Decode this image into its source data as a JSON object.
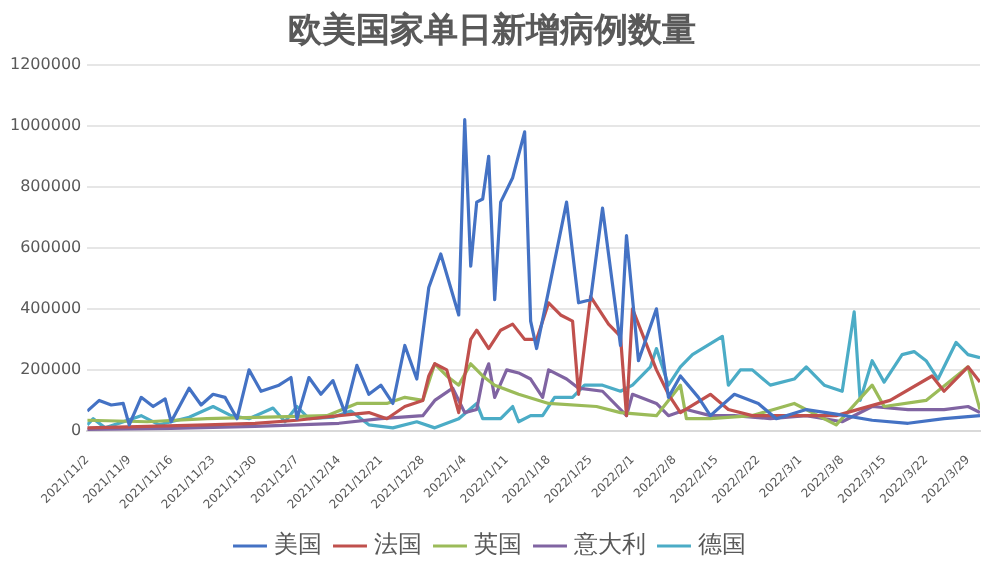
{
  "chart_data": {
    "type": "line",
    "title": "欧美国家单日新增病例数量",
    "xlim": [
      "2021-11-02",
      "2022-03-31"
    ],
    "xticks": [
      {
        "value": "2021-11-02",
        "label": "2021/11/2"
      },
      {
        "value": "2021-11-09",
        "label": "2021/11/9"
      },
      {
        "value": "2021-11-16",
        "label": "2021/11/16"
      },
      {
        "value": "2021-11-23",
        "label": "2021/11/23"
      },
      {
        "value": "2021-11-30",
        "label": "2021/11/30"
      },
      {
        "value": "2021-12-07",
        "label": "2021/12/7"
      },
      {
        "value": "2021-12-14",
        "label": "2021/12/14"
      },
      {
        "value": "2021-12-21",
        "label": "2021/12/21"
      },
      {
        "value": "2021-12-28",
        "label": "2021/12/28"
      },
      {
        "value": "2022-01-04",
        "label": "2022/1/4"
      },
      {
        "value": "2022-01-11",
        "label": "2022/1/11"
      },
      {
        "value": "2022-01-18",
        "label": "2022/1/18"
      },
      {
        "value": "2022-01-25",
        "label": "2022/1/25"
      },
      {
        "value": "2022-02-01",
        "label": "2022/2/1"
      },
      {
        "value": "2022-02-08",
        "label": "2022/2/8"
      },
      {
        "value": "2022-02-15",
        "label": "2022/2/15"
      },
      {
        "value": "2022-02-22",
        "label": "2022/2/22"
      },
      {
        "value": "2022-03-01",
        "label": "2022/3/1"
      },
      {
        "value": "2022-03-08",
        "label": "2022/3/8"
      },
      {
        "value": "2022-03-15",
        "label": "2022/3/15"
      },
      {
        "value": "2022-03-22",
        "label": "2022/3/22"
      },
      {
        "value": "2022-03-29",
        "label": "2022/3/29"
      }
    ],
    "ylim": [
      0,
      1200000
    ],
    "yticks": [
      0,
      200000,
      400000,
      600000,
      800000,
      1000000,
      1200000
    ],
    "grid": "y",
    "legend": "bottom",
    "marker": "none",
    "line_style": "solid",
    "series": [
      {
        "name": "美国",
        "color": "#4472c4",
        "x": [
          "2021-11-02",
          "2021-11-04",
          "2021-11-06",
          "2021-11-08",
          "2021-11-09",
          "2021-11-11",
          "2021-11-13",
          "2021-11-15",
          "2021-11-16",
          "2021-11-19",
          "2021-11-21",
          "2021-11-23",
          "2021-11-25",
          "2021-11-27",
          "2021-11-29",
          "2021-12-01",
          "2021-12-04",
          "2021-12-06",
          "2021-12-07",
          "2021-12-09",
          "2021-12-11",
          "2021-12-13",
          "2021-12-15",
          "2021-12-17",
          "2021-12-19",
          "2021-12-21",
          "2021-12-23",
          "2021-12-25",
          "2021-12-27",
          "2021-12-29",
          "2021-12-31",
          "2022-01-03",
          "2022-01-04",
          "2022-01-05",
          "2022-01-06",
          "2022-01-07",
          "2022-01-08",
          "2022-01-09",
          "2022-01-10",
          "2022-01-12",
          "2022-01-14",
          "2022-01-15",
          "2022-01-16",
          "2022-01-18",
          "2022-01-21",
          "2022-01-23",
          "2022-01-25",
          "2022-01-27",
          "2022-01-30",
          "2022-01-31",
          "2022-02-02",
          "2022-02-05",
          "2022-02-07",
          "2022-02-09",
          "2022-02-12",
          "2022-02-14",
          "2022-02-18",
          "2022-02-22",
          "2022-02-25",
          "2022-03-02",
          "2022-03-07",
          "2022-03-13",
          "2022-03-19",
          "2022-03-25",
          "2022-03-31"
        ],
        "values": [
          65000,
          100000,
          85000,
          90000,
          20000,
          110000,
          80000,
          105000,
          30000,
          140000,
          85000,
          120000,
          110000,
          40000,
          200000,
          130000,
          150000,
          175000,
          40000,
          175000,
          120000,
          165000,
          60000,
          215000,
          120000,
          150000,
          90000,
          280000,
          170000,
          470000,
          580000,
          380000,
          1020000,
          540000,
          750000,
          760000,
          900000,
          430000,
          750000,
          830000,
          980000,
          360000,
          270000,
          460000,
          750000,
          420000,
          430000,
          730000,
          280000,
          640000,
          230000,
          400000,
          110000,
          180000,
          110000,
          50000,
          120000,
          90000,
          40000,
          70000,
          55000,
          35000,
          25000,
          40000,
          50000
        ]
      },
      {
        "name": "法国",
        "color": "#c0504d",
        "x": [
          "2021-11-02",
          "2021-11-12",
          "2021-11-22",
          "2021-11-30",
          "2021-12-07",
          "2021-12-14",
          "2021-12-19",
          "2021-12-22",
          "2021-12-25",
          "2021-12-28",
          "2021-12-29",
          "2021-12-30",
          "2022-01-01",
          "2022-01-03",
          "2022-01-05",
          "2022-01-06",
          "2022-01-08",
          "2022-01-10",
          "2022-01-12",
          "2022-01-14",
          "2022-01-16",
          "2022-01-18",
          "2022-01-20",
          "2022-01-22",
          "2022-01-23",
          "2022-01-25",
          "2022-01-28",
          "2022-01-30",
          "2022-01-31",
          "2022-02-01",
          "2022-02-03",
          "2022-02-05",
          "2022-02-07",
          "2022-02-09",
          "2022-02-14",
          "2022-02-17",
          "2022-02-21",
          "2022-02-28",
          "2022-03-07",
          "2022-03-16",
          "2022-03-23",
          "2022-03-25",
          "2022-03-29",
          "2022-03-31"
        ],
        "values": [
          10000,
          15000,
          20000,
          25000,
          35000,
          50000,
          60000,
          40000,
          80000,
          100000,
          180000,
          220000,
          200000,
          60000,
          300000,
          330000,
          270000,
          330000,
          350000,
          300000,
          300000,
          420000,
          380000,
          360000,
          120000,
          440000,
          350000,
          310000,
          50000,
          400000,
          300000,
          200000,
          120000,
          60000,
          120000,
          70000,
          50000,
          50000,
          50000,
          100000,
          180000,
          130000,
          210000,
          160000
        ]
      },
      {
        "name": "英国",
        "color": "#9bbb59",
        "x": [
          "2021-11-02",
          "2021-11-12",
          "2021-11-22",
          "2021-12-02",
          "2021-12-12",
          "2021-12-17",
          "2021-12-22",
          "2021-12-25",
          "2021-12-28",
          "2021-12-30",
          "2022-01-01",
          "2022-01-03",
          "2022-01-05",
          "2022-01-07",
          "2022-01-09",
          "2022-01-13",
          "2022-01-18",
          "2022-01-26",
          "2022-01-30",
          "2022-02-05",
          "2022-02-09",
          "2022-02-10",
          "2022-02-14",
          "2022-02-21",
          "2022-02-28",
          "2022-03-07",
          "2022-03-13",
          "2022-03-15",
          "2022-03-22",
          "2022-03-29",
          "2022-03-31"
        ],
        "values": [
          35000,
          30000,
          40000,
          45000,
          50000,
          90000,
          90000,
          110000,
          100000,
          220000,
          180000,
          150000,
          220000,
          180000,
          150000,
          120000,
          90000,
          80000,
          60000,
          50000,
          150000,
          40000,
          40000,
          50000,
          90000,
          20000,
          150000,
          80000,
          100000,
          210000,
          70000
        ]
      },
      {
        "name": "意大利",
        "color": "#8064a2",
        "x": [
          "2021-11-02",
          "2021-11-16",
          "2021-11-30",
          "2021-12-14",
          "2021-12-21",
          "2021-12-28",
          "2021-12-30",
          "2022-01-02",
          "2022-01-04",
          "2022-01-06",
          "2022-01-07",
          "2022-01-08",
          "2022-01-09",
          "2022-01-11",
          "2022-01-13",
          "2022-01-15",
          "2022-01-17",
          "2022-01-18",
          "2022-01-21",
          "2022-01-23",
          "2022-01-27",
          "2022-01-31",
          "2022-02-01",
          "2022-02-05",
          "2022-02-07",
          "2022-02-10",
          "2022-02-14",
          "2022-02-18",
          "2022-02-24",
          "2022-03-02",
          "2022-03-08",
          "2022-03-13",
          "2022-03-19",
          "2022-03-25",
          "2022-03-29",
          "2022-03-31"
        ],
        "values": [
          5000,
          8000,
          15000,
          25000,
          40000,
          50000,
          100000,
          140000,
          60000,
          70000,
          170000,
          220000,
          110000,
          200000,
          190000,
          170000,
          110000,
          200000,
          170000,
          140000,
          130000,
          50000,
          120000,
          90000,
          50000,
          70000,
          50000,
          50000,
          40000,
          50000,
          30000,
          80000,
          70000,
          70000,
          80000,
          60000
        ]
      },
      {
        "name": "德国",
        "color": "#4bacc6",
        "x": [
          "2021-11-02",
          "2021-11-03",
          "2021-11-05",
          "2021-11-11",
          "2021-11-14",
          "2021-11-19",
          "2021-11-23",
          "2021-11-26",
          "2021-11-29",
          "2021-12-03",
          "2021-12-05",
          "2021-12-07",
          "2021-12-09",
          "2021-12-13",
          "2021-12-16",
          "2021-12-19",
          "2021-12-23",
          "2021-12-27",
          "2021-12-30",
          "2022-01-03",
          "2022-01-06",
          "2022-01-07",
          "2022-01-10",
          "2022-01-12",
          "2022-01-13",
          "2022-01-15",
          "2022-01-17",
          "2022-01-19",
          "2022-01-22",
          "2022-01-24",
          "2022-01-27",
          "2022-01-30",
          "2022-02-01",
          "2022-02-04",
          "2022-02-05",
          "2022-02-07",
          "2022-02-09",
          "2022-02-11",
          "2022-02-16",
          "2022-02-17",
          "2022-02-19",
          "2022-02-21",
          "2022-02-24",
          "2022-02-28",
          "2022-03-02",
          "2022-03-05",
          "2022-03-08",
          "2022-03-10",
          "2022-03-11",
          "2022-03-13",
          "2022-03-15",
          "2022-03-18",
          "2022-03-20",
          "2022-03-22",
          "2022-03-24",
          "2022-03-27",
          "2022-03-29",
          "2022-03-31"
        ],
        "values": [
          20000,
          40000,
          10000,
          50000,
          20000,
          45000,
          80000,
          50000,
          40000,
          75000,
          30000,
          80000,
          40000,
          45000,
          65000,
          20000,
          10000,
          30000,
          10000,
          40000,
          90000,
          40000,
          40000,
          80000,
          30000,
          50000,
          50000,
          110000,
          110000,
          150000,
          150000,
          130000,
          150000,
          210000,
          270000,
          150000,
          210000,
          250000,
          310000,
          150000,
          200000,
          200000,
          150000,
          170000,
          210000,
          150000,
          130000,
          390000,
          100000,
          230000,
          160000,
          250000,
          260000,
          230000,
          170000,
          290000,
          250000,
          240000
        ]
      }
    ]
  }
}
